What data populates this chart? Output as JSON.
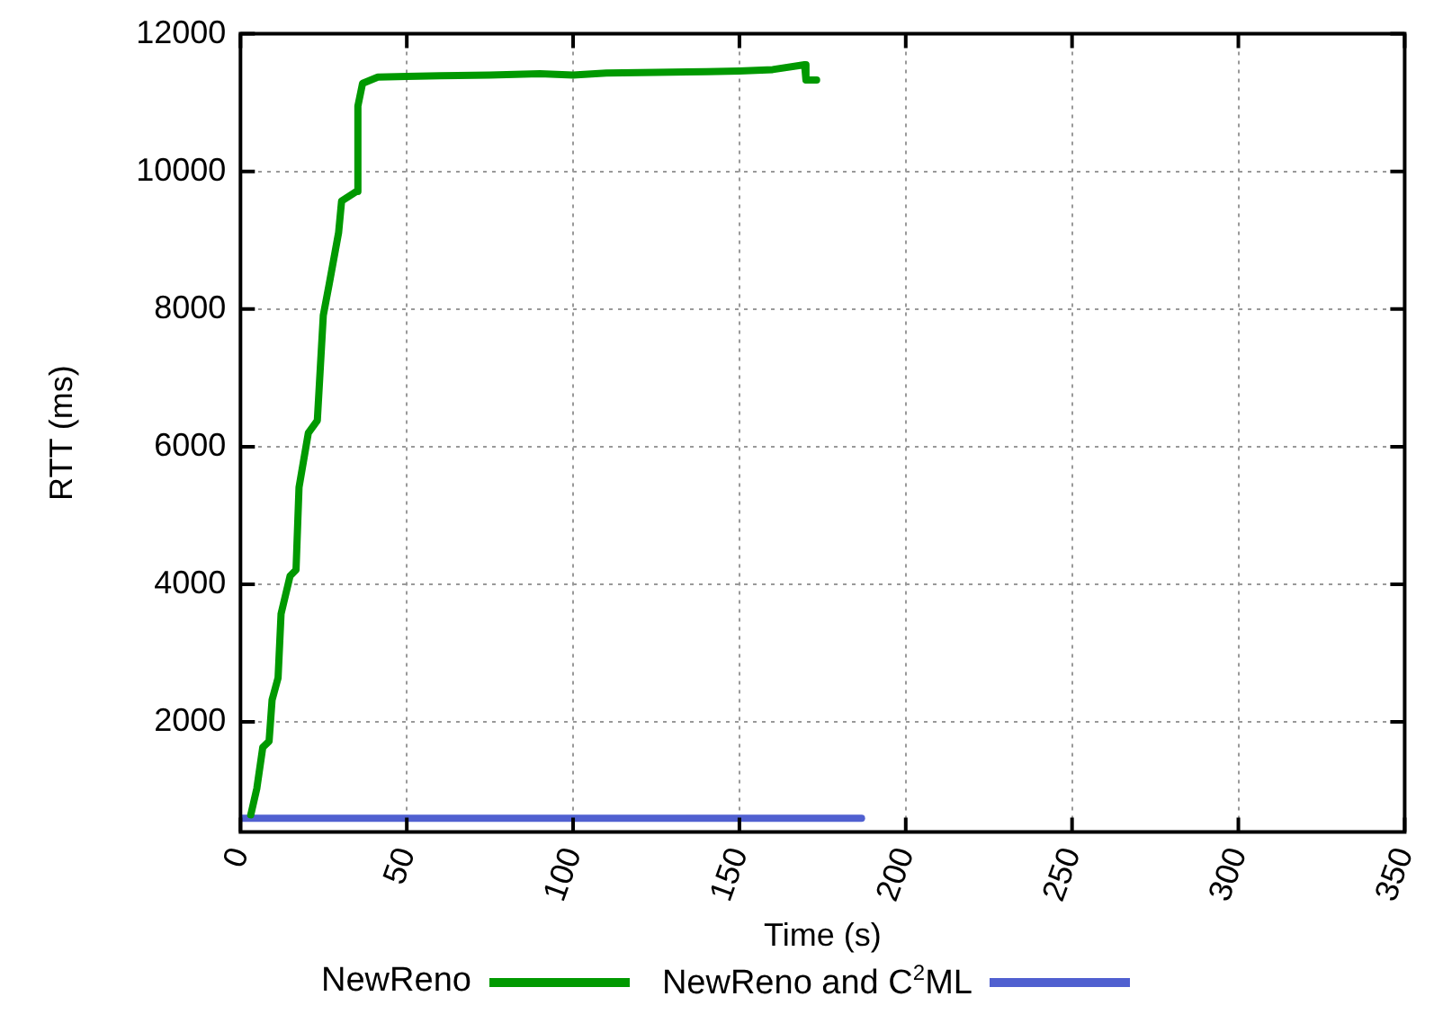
{
  "chart_data": {
    "type": "line",
    "xlabel": "Time (s)",
    "ylabel": "RTT (ms)",
    "xlim": [
      0,
      350
    ],
    "xticks": [
      0,
      50,
      100,
      150,
      200,
      250,
      300,
      350
    ],
    "ylim": [
      400,
      12000
    ],
    "yticks": [
      2000,
      4000,
      6000,
      8000,
      10000,
      12000
    ],
    "grid": true,
    "legend": "bottom",
    "marker": "none",
    "line_style": "solid",
    "series": [
      {
        "name": "NewReno",
        "color": "#009900",
        "x": [
          3.1,
          4.9,
          6.7,
          8.6,
          9.5,
          11.3,
          12.2,
          14.9,
          16.7,
          17.6,
          20.4,
          23.1,
          24.9,
          26.7,
          29.5,
          30.4,
          34.9,
          35.3,
          36.7,
          41.3,
          50,
          60,
          75,
          90,
          100,
          110,
          125,
          140,
          150,
          160,
          169.6,
          170,
          173.2
        ],
        "values": [
          650,
          1030,
          1630,
          1720,
          2320,
          2640,
          3570,
          4120,
          4210,
          5410,
          6200,
          6380,
          7910,
          8370,
          9110,
          9570,
          9710,
          10950,
          11280,
          11370,
          11380,
          11390,
          11400,
          11420,
          11400,
          11430,
          11440,
          11450,
          11460,
          11480,
          11550,
          11330,
          11330
        ]
      },
      {
        "name": "NewReno and C$^{2}$ML",
        "color": "#5060d0",
        "x": [
          0,
          25,
          50,
          75,
          100,
          125,
          150,
          175,
          186.7
        ],
        "values": [
          600,
          600,
          600,
          600,
          600,
          600,
          600,
          600,
          600
        ]
      }
    ]
  }
}
